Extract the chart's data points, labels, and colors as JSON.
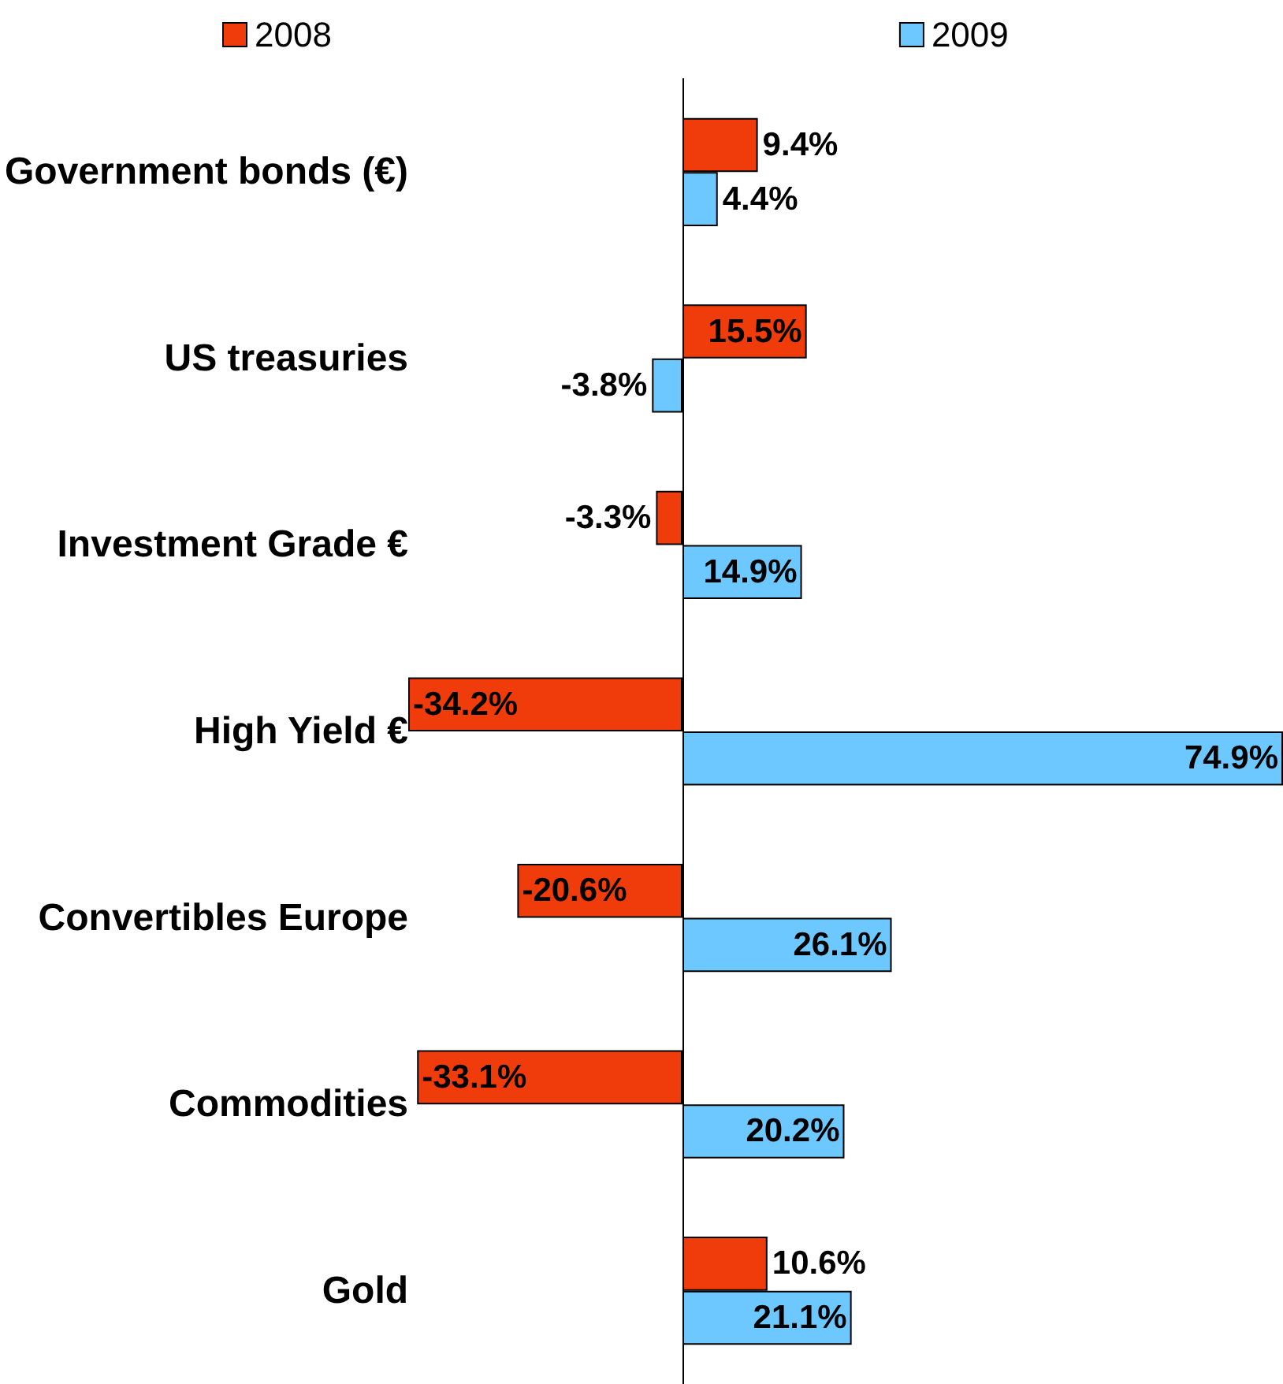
{
  "chart_data": {
    "type": "bar",
    "orientation": "horizontal",
    "categories": [
      "Government bonds (€)",
      "US treasuries",
      "Investment Grade €",
      "High Yield €",
      "Convertibles Europe",
      "Commodities",
      "Gold"
    ],
    "series": [
      {
        "name": "2008",
        "color": "#f03c0a",
        "values": [
          9.4,
          15.5,
          -3.3,
          -34.2,
          -20.6,
          -33.1,
          10.6
        ],
        "value_labels": [
          "9.4%",
          "15.5%",
          "-3.3%",
          "-34.2%",
          "-20.6%",
          "-33.1%",
          "10.6%"
        ]
      },
      {
        "name": "2009",
        "color": "#6cc8ff",
        "values": [
          4.4,
          -3.8,
          14.9,
          74.9,
          26.1,
          20.2,
          21.1
        ],
        "value_labels": [
          "4.4%",
          "-3.8%",
          "14.9%",
          "74.9%",
          "26.1%",
          "20.2%",
          "21.1%"
        ]
      }
    ],
    "legend": "top",
    "grid": false
  }
}
